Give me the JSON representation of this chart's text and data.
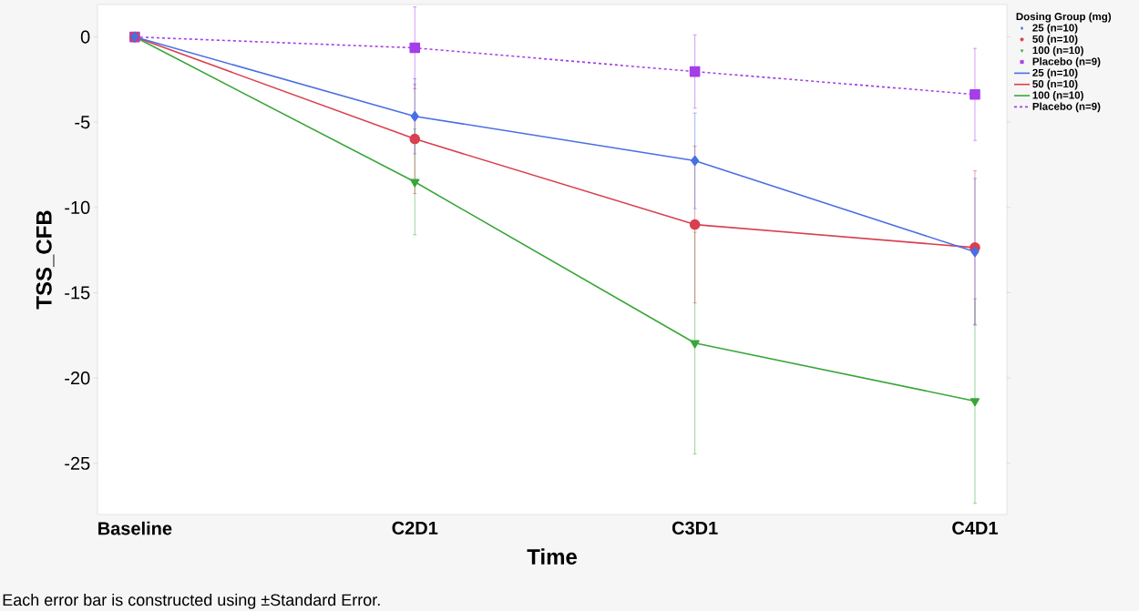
{
  "chart_data": {
    "type": "line",
    "xlabel": "Time",
    "ylabel": "TSS_CFB",
    "legend_title": "Dosing Group (mg)",
    "categories": [
      "Baseline",
      "C2D1",
      "C3D1",
      "C4D1"
    ],
    "series": [
      {
        "name": "25 (n=10)",
        "color": "#4a6fe3",
        "marker": "diamond",
        "line_style": "solid",
        "values": [
          0,
          -4.65,
          -7.26,
          -12.6
        ],
        "errors": [
          null,
          2.2,
          2.8,
          4.3
        ]
      },
      {
        "name": "50 (n=10)",
        "color": "#d9404f",
        "marker": "circle",
        "line_style": "solid",
        "values": [
          0,
          -5.98,
          -11.0,
          -12.35
        ],
        "errors": [
          null,
          3.2,
          4.6,
          4.5
        ]
      },
      {
        "name": "100 (n=10)",
        "color": "#3aa639",
        "marker": "triangle",
        "line_style": "solid",
        "values": [
          0,
          -8.5,
          -17.95,
          -21.35
        ],
        "errors": [
          null,
          3.1,
          6.5,
          6.0
        ]
      },
      {
        "name": "Placebo (n=9)",
        "color": "#a43ee6",
        "marker": "square",
        "line_style": "dashed",
        "values": [
          0,
          -0.64,
          -2.03,
          -3.37
        ],
        "errors": [
          null,
          2.4,
          2.15,
          2.7
        ]
      }
    ],
    "ylim": [
      -28,
      1.9
    ],
    "yticks": [
      -25,
      -20,
      -15,
      -10,
      -5,
      0
    ],
    "grid": false,
    "legend": "top right",
    "annotations": [
      "Each error bar is constructed using ±Standard Error."
    ]
  }
}
